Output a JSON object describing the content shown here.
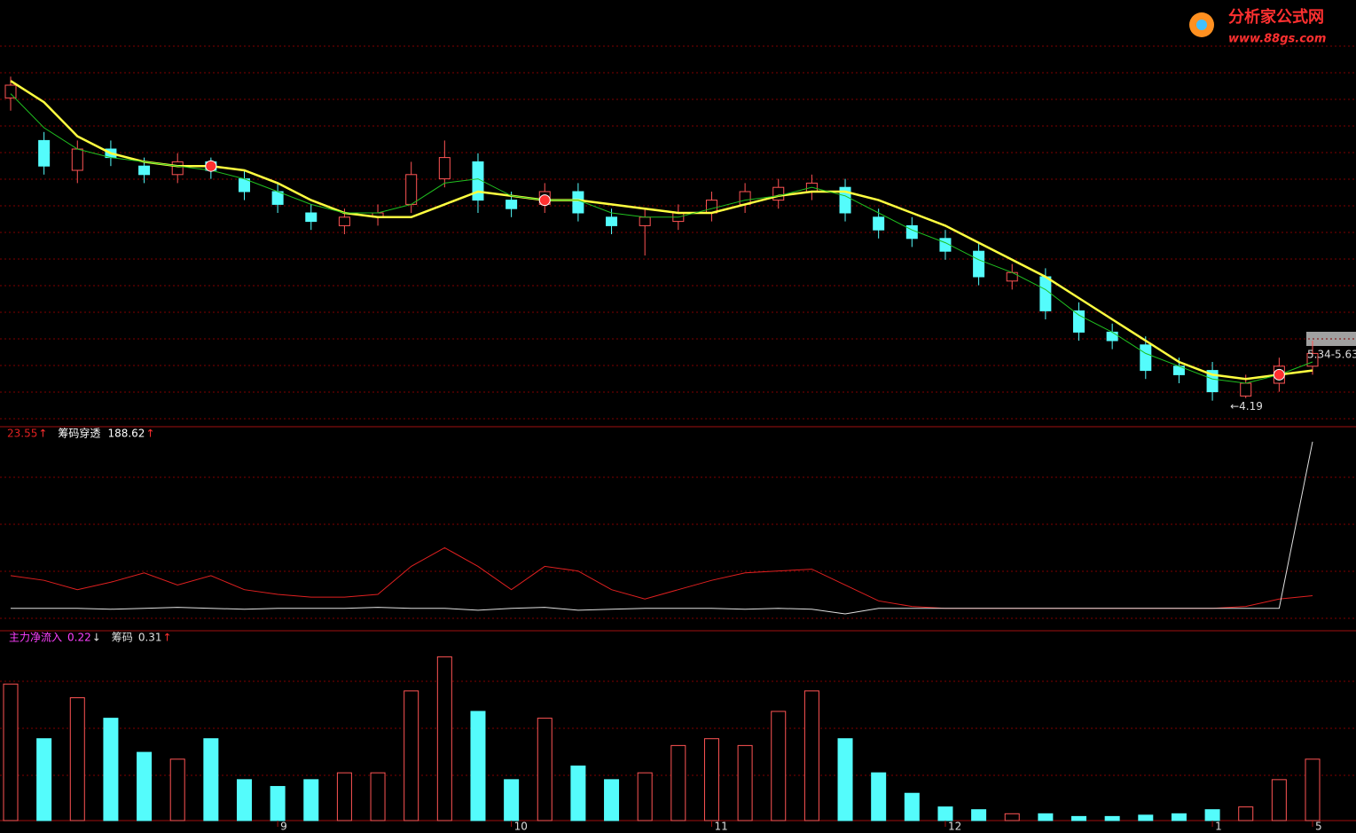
{
  "chart_data": {
    "type": "candlestick",
    "logo": {
      "title": "分析家公式网",
      "url": "www.88gs.com"
    },
    "categories": [
      null,
      null,
      null,
      null,
      null,
      null,
      null,
      null,
      "9",
      null,
      null,
      null,
      null,
      null,
      null,
      "10",
      null,
      null,
      null,
      null,
      null,
      "11",
      null,
      null,
      null,
      null,
      null,
      null,
      "12",
      null,
      null,
      null,
      null,
      null,
      null,
      null,
      "1",
      null,
      null,
      "5"
    ],
    "open": [
      11.3,
      10.3,
      9.6,
      10.1,
      9.7,
      9.5,
      9.8,
      9.4,
      9.1,
      8.6,
      8.3,
      8.5,
      8.8,
      9.4,
      9.8,
      8.9,
      8.8,
      9.1,
      8.5,
      8.3,
      8.4,
      8.6,
      8.8,
      8.9,
      9.1,
      9.2,
      8.5,
      8.3,
      8.0,
      7.7,
      7.0,
      7.1,
      6.3,
      5.8,
      5.5,
      5.0,
      4.9,
      4.3,
      4.6,
      5.0
    ],
    "close": [
      11.6,
      9.7,
      10.1,
      9.9,
      9.5,
      9.8,
      9.6,
      9.1,
      8.8,
      8.4,
      8.5,
      8.6,
      9.5,
      9.9,
      8.9,
      8.7,
      9.1,
      8.6,
      8.3,
      8.5,
      8.6,
      8.9,
      9.1,
      9.2,
      9.3,
      8.6,
      8.2,
      8.0,
      7.7,
      7.1,
      7.2,
      6.3,
      5.8,
      5.6,
      4.9,
      4.8,
      4.4,
      4.6,
      5.0,
      5.3
    ],
    "high": [
      11.8,
      10.5,
      10.3,
      10.3,
      9.9,
      10.0,
      9.9,
      9.6,
      9.3,
      8.8,
      8.7,
      8.8,
      9.8,
      10.3,
      10.0,
      9.1,
      9.3,
      9.3,
      8.7,
      8.7,
      8.8,
      9.1,
      9.3,
      9.4,
      9.5,
      9.4,
      8.7,
      8.5,
      8.2,
      7.9,
      7.4,
      7.3,
      6.5,
      6.0,
      5.7,
      5.2,
      5.1,
      4.8,
      5.2,
      5.6
    ],
    "low": [
      11.0,
      9.5,
      9.3,
      9.7,
      9.3,
      9.3,
      9.4,
      8.9,
      8.6,
      8.2,
      8.1,
      8.3,
      8.6,
      9.2,
      8.6,
      8.5,
      8.6,
      8.4,
      8.1,
      7.6,
      8.2,
      8.4,
      8.6,
      8.7,
      8.9,
      8.4,
      8.0,
      7.8,
      7.5,
      6.9,
      6.8,
      6.1,
      5.6,
      5.4,
      4.7,
      4.6,
      4.19,
      4.25,
      4.4,
      4.8
    ],
    "ylim": [
      3.6,
      13.6
    ],
    "up_color": "#ff5454",
    "down_color": "#54fcfc",
    "ma": [
      {
        "color": "#ffff40",
        "values": [
          11.7,
          11.2,
          10.4,
          10.0,
          9.8,
          9.7,
          9.7,
          9.6,
          9.3,
          8.9,
          8.6,
          8.5,
          8.5,
          8.8,
          9.1,
          9.0,
          8.9,
          8.9,
          8.8,
          8.7,
          8.6,
          8.6,
          8.8,
          9.0,
          9.1,
          9.1,
          8.9,
          8.6,
          8.3,
          7.9,
          7.5,
          7.1,
          6.6,
          6.1,
          5.6,
          5.1,
          4.8,
          4.7,
          4.8,
          4.9
        ]
      },
      {
        "color": "#20c020",
        "values": [
          11.4,
          10.6,
          10.1,
          9.9,
          9.8,
          9.7,
          9.6,
          9.4,
          9.1,
          8.8,
          8.6,
          8.6,
          8.8,
          9.3,
          9.4,
          9.0,
          8.9,
          8.9,
          8.6,
          8.5,
          8.5,
          8.7,
          8.9,
          9.0,
          9.2,
          9.0,
          8.6,
          8.2,
          7.9,
          7.5,
          7.2,
          6.8,
          6.2,
          5.8,
          5.3,
          5.0,
          4.7,
          4.6,
          4.8,
          5.1
        ]
      }
    ],
    "range_label": "5.34-5.63",
    "low_label": "←4.19",
    "low_index": 36,
    "signal_indices": [
      6,
      16,
      38
    ],
    "indicator": {
      "type": "line",
      "ylim": [
        -15,
        200
      ],
      "series": [
        {
          "color": "#e02020",
          "trend": "↑",
          "values": [
            45,
            40,
            30,
            38,
            48,
            35,
            45,
            30,
            25,
            22,
            22,
            25,
            55,
            75,
            55,
            30,
            55,
            50,
            30,
            20,
            30,
            40,
            48,
            50,
            52,
            35,
            18,
            12,
            10,
            10,
            10,
            10,
            10,
            10,
            10,
            10,
            10,
            12,
            20,
            23.55
          ]
        },
        {
          "name": "筹码穿透",
          "color": "#e0e0e0",
          "trend": "↑",
          "values": [
            10,
            10,
            10,
            9,
            10,
            11,
            10,
            9,
            10,
            10,
            10,
            11,
            10,
            10,
            8,
            10,
            11,
            8,
            9,
            10,
            10,
            10,
            9,
            10,
            9,
            4,
            10,
            10,
            10,
            10,
            10,
            10,
            10,
            10,
            10,
            10,
            10,
            10,
            10,
            188.62
          ]
        }
      ]
    },
    "volume": {
      "type": "bar",
      "ylim": [
        0,
        130
      ],
      "values": [
        100,
        60,
        90,
        75,
        50,
        45,
        60,
        30,
        25,
        30,
        35,
        35,
        95,
        120,
        80,
        30,
        75,
        40,
        30,
        35,
        55,
        60,
        55,
        80,
        95,
        60,
        35,
        20,
        10,
        8,
        5,
        5,
        3,
        3,
        4,
        5,
        8,
        10,
        30,
        45
      ],
      "legend": [
        {
          "name": "主力净流入",
          "value": 0.22,
          "trend": "↓",
          "color": "#ff40ff"
        },
        {
          "name": "筹码",
          "value": 0.31,
          "trend": "↑",
          "color": "#e0e0e0"
        }
      ]
    }
  }
}
